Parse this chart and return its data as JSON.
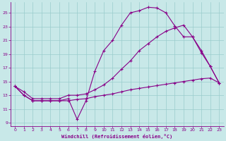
{
  "xlabel": "Windchill (Refroidissement éolien,°C)",
  "background_color": "#c8e8e8",
  "line_color": "#880088",
  "grid_color": "#99cccc",
  "xlim": [
    -0.5,
    23.5
  ],
  "ylim": [
    8.5,
    26.5
  ],
  "yticks": [
    9,
    11,
    13,
    15,
    17,
    19,
    21,
    23,
    25
  ],
  "xticks": [
    0,
    1,
    2,
    3,
    4,
    5,
    6,
    7,
    8,
    9,
    10,
    11,
    12,
    13,
    14,
    15,
    16,
    17,
    18,
    19,
    20,
    21,
    22,
    23
  ],
  "line1_x": [
    0,
    1,
    2,
    3,
    4,
    5,
    6,
    7,
    8,
    9,
    10,
    11,
    12,
    13,
    14,
    15,
    16,
    17,
    18,
    19,
    20,
    21,
    22,
    23
  ],
  "line1_y": [
    14.3,
    13.0,
    12.2,
    12.2,
    12.2,
    12.2,
    12.5,
    9.5,
    12.2,
    16.5,
    19.5,
    21.0,
    23.2,
    25.0,
    25.3,
    25.8,
    25.7,
    25.0,
    23.1,
    21.5,
    21.5,
    19.2,
    17.2,
    14.8
  ],
  "line2_x": [
    0,
    1,
    2,
    3,
    4,
    5,
    6,
    7,
    8,
    9,
    10,
    11,
    12,
    13,
    14,
    15,
    16,
    17,
    18,
    19,
    20,
    21,
    22,
    23
  ],
  "line2_y": [
    14.3,
    13.0,
    12.2,
    12.2,
    12.2,
    12.2,
    12.2,
    12.4,
    12.5,
    12.8,
    13.0,
    13.2,
    13.5,
    13.8,
    14.0,
    14.2,
    14.4,
    14.6,
    14.8,
    15.0,
    15.2,
    15.4,
    15.5,
    14.8
  ],
  "line3_x": [
    0,
    1,
    2,
    3,
    4,
    5,
    6,
    7,
    8,
    9,
    10,
    11,
    12,
    13,
    14,
    15,
    16,
    17,
    18,
    19,
    20,
    21,
    22,
    23
  ],
  "line3_y": [
    14.3,
    13.5,
    12.5,
    12.5,
    12.5,
    12.5,
    13.0,
    13.0,
    13.2,
    13.8,
    14.5,
    15.5,
    16.8,
    18.0,
    19.5,
    20.5,
    21.5,
    22.3,
    22.8,
    23.2,
    21.5,
    19.5,
    17.2,
    14.8
  ]
}
